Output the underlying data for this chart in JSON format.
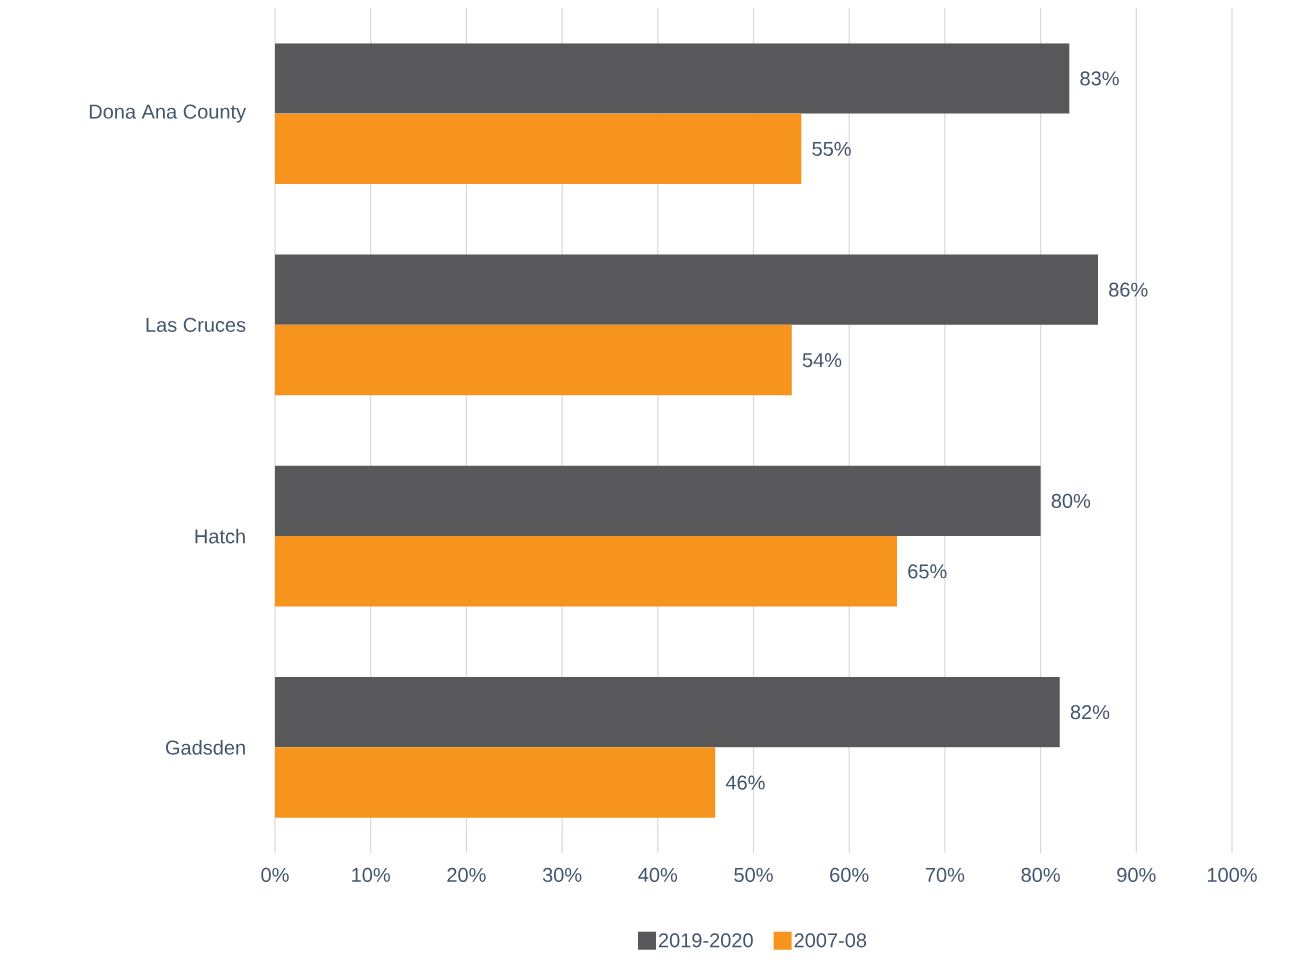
{
  "chart_data": {
    "type": "bar",
    "orientation": "horizontal",
    "categories": [
      "Dona Ana County",
      "Las Cruces",
      "Hatch",
      "Gadsden"
    ],
    "series": [
      {
        "name": "2019-2020",
        "color": "#58585a",
        "values": [
          83,
          86,
          80,
          82
        ],
        "value_labels": [
          "83%",
          "86%",
          "80%",
          "82%"
        ]
      },
      {
        "name": "2007-08",
        "color": "#f7941d",
        "values": [
          55,
          54,
          65,
          46
        ],
        "value_labels": [
          "55%",
          "54%",
          "65%",
          "46%"
        ]
      }
    ],
    "xlim": [
      0,
      100
    ],
    "xticks": [
      {
        "value": 0,
        "label": "0%"
      },
      {
        "value": 10,
        "label": "10%"
      },
      {
        "value": 20,
        "label": "20%"
      },
      {
        "value": 30,
        "label": "30%"
      },
      {
        "value": 40,
        "label": "40%"
      },
      {
        "value": 50,
        "label": "50%"
      },
      {
        "value": 60,
        "label": "60%"
      },
      {
        "value": 70,
        "label": "70%"
      },
      {
        "value": 80,
        "label": "80%"
      },
      {
        "value": 90,
        "label": "90%"
      },
      {
        "value": 100,
        "label": "100%"
      }
    ],
    "grid": "x",
    "legend": "bottom"
  }
}
